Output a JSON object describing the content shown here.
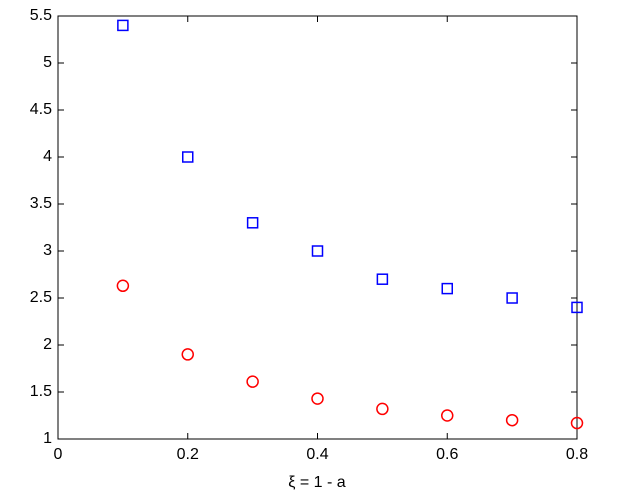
{
  "chart_data": {
    "type": "scatter",
    "x_label": "ξ = 1 - a",
    "x": [
      0.1,
      0.2,
      0.3,
      0.4,
      0.5,
      0.6,
      0.7,
      0.8
    ],
    "series": [
      {
        "color": "#0000ff",
        "marker": "square",
        "values": [
          5.4,
          4.0,
          3.3,
          3.0,
          2.7,
          2.6,
          2.5,
          2.4
        ]
      },
      {
        "color": "#ff0000",
        "marker": "circle",
        "values": [
          2.63,
          1.9,
          1.61,
          1.43,
          1.32,
          1.25,
          1.2,
          1.17
        ]
      }
    ],
    "xlim": [
      0,
      0.8
    ],
    "xticks": [
      0,
      0.2,
      0.4,
      0.6,
      0.8
    ],
    "ylim": [
      1,
      5.5
    ],
    "yticks": [
      1,
      1.5,
      2,
      2.5,
      3,
      3.5,
      4,
      4.5,
      5,
      5.5
    ],
    "grid": false
  }
}
